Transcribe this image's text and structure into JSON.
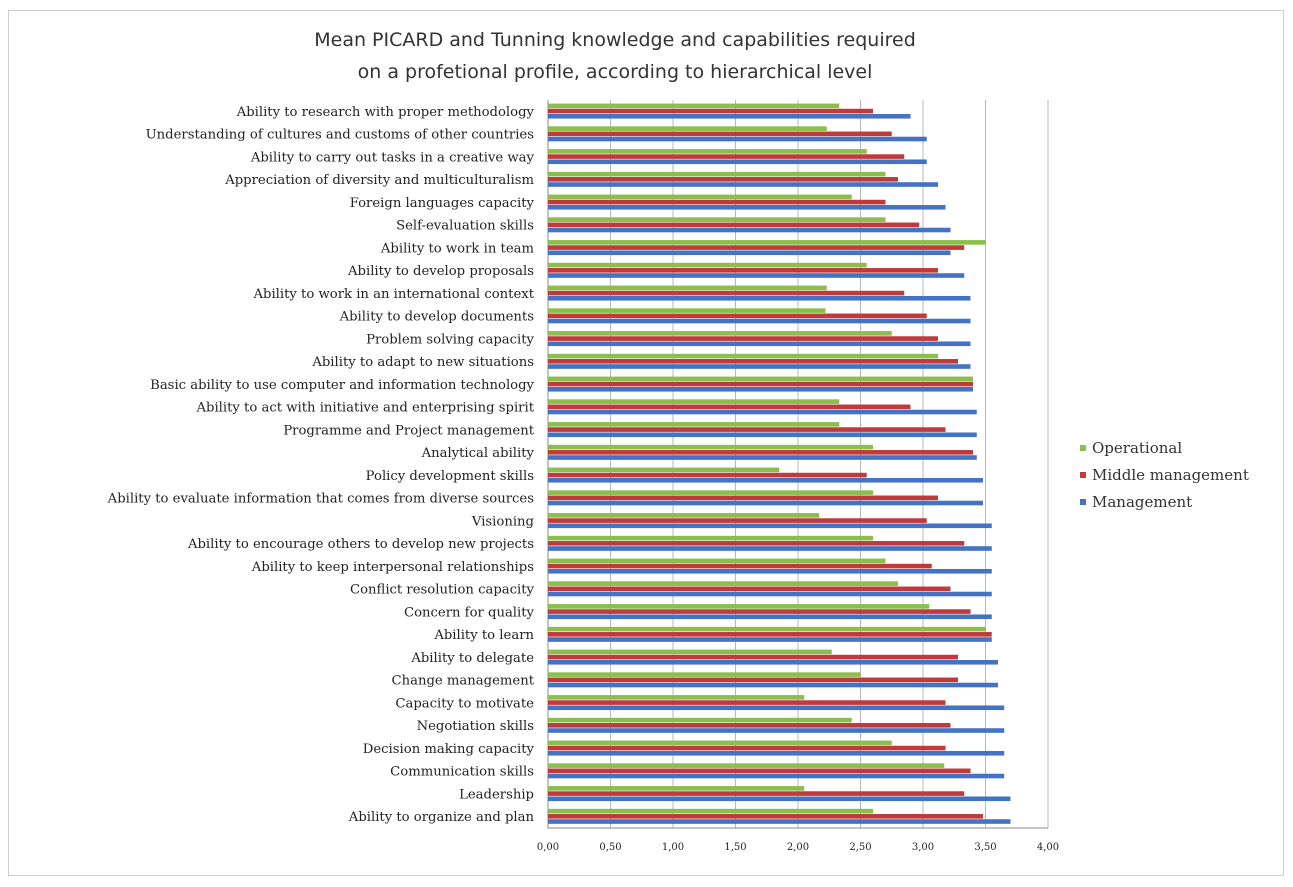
{
  "colors": {
    "Operational": "#8bbe4b",
    "Middle management": "#c0393b",
    "Management": "#4472c4"
  },
  "chart_data": {
    "type": "bar",
    "orientation": "horizontal",
    "title_lines": [
      "Mean PICARD and Tunning  knowledge and capabilities  required",
      "on a profetional profile, according to hierarchical level"
    ],
    "xlim": [
      0,
      4
    ],
    "xticks": [
      "0,00",
      "0,50",
      "1,00",
      "1,50",
      "2,00",
      "2,50",
      "3,00",
      "3,50",
      "4,00"
    ],
    "grid": "vertical",
    "legend_position": "right",
    "categories": [
      "Ability to research with proper methodology",
      "Understanding of cultures and customs of other countries",
      "Ability to carry out tasks in a creative way",
      "Appreciation of diversity and multiculturalism",
      "Foreign languages capacity",
      "Self-evaluation skills",
      "Ability to work in team",
      "Ability to develop proposals",
      "Ability to work in an international context",
      "Ability to develop documents",
      "Problem solving capacity",
      "Ability to adapt to new situations",
      "Basic ability to use computer and information technology",
      "Ability to act with initiative and enterprising spirit",
      "Programme and Project management",
      "Analytical ability",
      "Policy development skills",
      "Ability to evaluate information that comes from diverse sources",
      "Visioning",
      "Ability to encourage others to develop new projects",
      "Ability to keep interpersonal relationships",
      "Conflict resolution capacity",
      "Concern for quality",
      "Ability to learn",
      "Ability to delegate",
      "Change management",
      "Capacity to motivate",
      "Negotiation skills",
      "Decision making capacity",
      "Communication skills",
      "Leadership",
      "Ability to organize and plan"
    ],
    "series": [
      {
        "name": "Operational",
        "values": [
          2.33,
          2.23,
          2.55,
          2.7,
          2.43,
          2.7,
          3.5,
          2.55,
          2.23,
          2.22,
          2.75,
          3.12,
          3.4,
          2.33,
          2.33,
          2.6,
          1.85,
          2.6,
          2.17,
          2.6,
          2.7,
          2.8,
          3.05,
          3.5,
          2.27,
          2.5,
          2.05,
          2.43,
          2.75,
          3.17,
          2.05,
          2.6
        ]
      },
      {
        "name": "Middle management",
        "values": [
          2.6,
          2.75,
          2.85,
          2.8,
          2.7,
          2.97,
          3.33,
          3.12,
          2.85,
          3.03,
          3.12,
          3.28,
          3.4,
          2.9,
          3.18,
          3.4,
          2.55,
          3.12,
          3.03,
          3.33,
          3.07,
          3.22,
          3.38,
          3.55,
          3.28,
          3.28,
          3.18,
          3.22,
          3.18,
          3.38,
          3.33,
          3.48
        ]
      },
      {
        "name": "Management",
        "values": [
          2.9,
          3.03,
          3.03,
          3.12,
          3.18,
          3.22,
          3.22,
          3.33,
          3.38,
          3.38,
          3.38,
          3.38,
          3.4,
          3.43,
          3.43,
          3.43,
          3.48,
          3.48,
          3.55,
          3.55,
          3.55,
          3.55,
          3.55,
          3.55,
          3.6,
          3.6,
          3.65,
          3.65,
          3.65,
          3.65,
          3.7,
          3.7
        ]
      }
    ]
  }
}
